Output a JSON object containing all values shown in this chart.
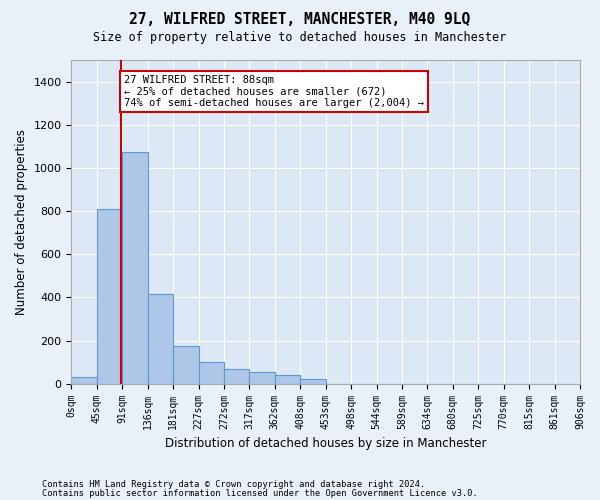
{
  "title": "27, WILFRED STREET, MANCHESTER, M40 9LQ",
  "subtitle": "Size of property relative to detached houses in Manchester",
  "xlabel": "Distribution of detached houses by size in Manchester",
  "ylabel": "Number of detached properties",
  "bar_color": "#aec6e8",
  "bar_edge_color": "#5b9bd5",
  "bin_labels": [
    "0sqm",
    "45sqm",
    "91sqm",
    "136sqm",
    "181sqm",
    "227sqm",
    "272sqm",
    "317sqm",
    "362sqm",
    "408sqm",
    "453sqm",
    "498sqm",
    "544sqm",
    "589sqm",
    "634sqm",
    "680sqm",
    "725sqm",
    "770sqm",
    "815sqm",
    "861sqm",
    "906sqm"
  ],
  "bar_values": [
    30,
    810,
    1075,
    415,
    175,
    100,
    70,
    55,
    40,
    20,
    0,
    0,
    0,
    0,
    0,
    0,
    0,
    0,
    0,
    0
  ],
  "ylim": [
    0,
    1500
  ],
  "yticks": [
    0,
    200,
    400,
    600,
    800,
    1000,
    1200,
    1400
  ],
  "annotation_text": "27 WILFRED STREET: 88sqm\n← 25% of detached houses are smaller (672)\n74% of semi-detached houses are larger (2,004) →",
  "annotation_box_color": "#ffffff",
  "annotation_box_edge_color": "#cc0000",
  "vline_color": "#cc0000",
  "footer1": "Contains HM Land Registry data © Crown copyright and database right 2024.",
  "footer2": "Contains public sector information licensed under the Open Government Licence v3.0.",
  "bg_color": "#e8f0f8",
  "plot_bg_color": "#dce8f5"
}
